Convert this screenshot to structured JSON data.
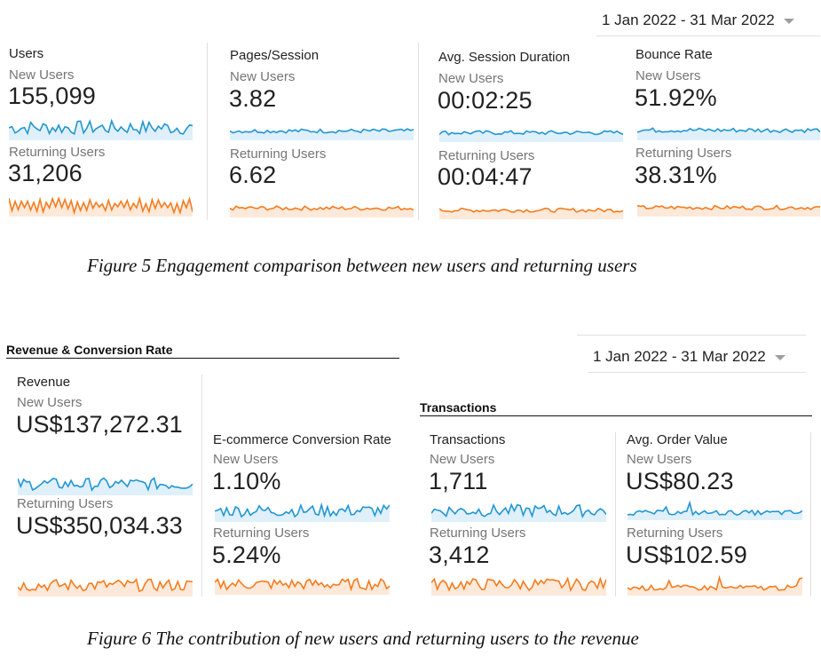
{
  "colors": {
    "new": "#2196d3",
    "new_fill": "#dff0fa",
    "returning": "#f57c1f",
    "returning_fill": "#fde9d9"
  },
  "fig5": {
    "date_range": "1 Jan 2022 - 31 Mar 2022",
    "caption": "Figure 5 Engagement comparison between new users and returning users",
    "metrics": [
      {
        "title": "Users",
        "new_label": "New Users",
        "new_value": "155,099",
        "ret_label": "Returning Users",
        "ret_value": "31,206"
      },
      {
        "title": "Pages/Session",
        "new_label": "New Users",
        "new_value": "3.82",
        "ret_label": "Returning Users",
        "ret_value": "6.62"
      },
      {
        "title": "Avg. Session Duration",
        "new_label": "New Users",
        "new_value": "00:02:25",
        "ret_label": "Returning Users",
        "ret_value": "00:04:47"
      },
      {
        "title": "Bounce Rate",
        "new_label": "New Users",
        "new_value": "51.92%",
        "ret_label": "Returning Users",
        "ret_value": "38.31%"
      }
    ]
  },
  "fig6": {
    "section_title": "Revenue & Conversion Rate",
    "transactions_section_title": "Transactions",
    "date_range": "1 Jan 2022 - 31 Mar 2022",
    "caption": "Figure 6 The contribution of new users and returning users to the revenue",
    "metrics": [
      {
        "title": "Revenue",
        "new_label": "New Users",
        "new_value": "US$137,272.31",
        "ret_label": "Returning Users",
        "ret_value": "US$350,034.33"
      },
      {
        "title": "E-commerce Conversion Rate",
        "new_label": "New Users",
        "new_value": "1.10%",
        "ret_label": "Returning Users",
        "ret_value": "5.24%"
      },
      {
        "title": "Transactions",
        "new_label": "New Users",
        "new_value": "1,711",
        "ret_label": "Returning Users",
        "ret_value": "3,412"
      },
      {
        "title": "Avg. Order Value",
        "new_label": "New Users",
        "new_value": "US$80.23",
        "ret_label": "Returning Users",
        "ret_value": "US$102.59"
      }
    ]
  }
}
